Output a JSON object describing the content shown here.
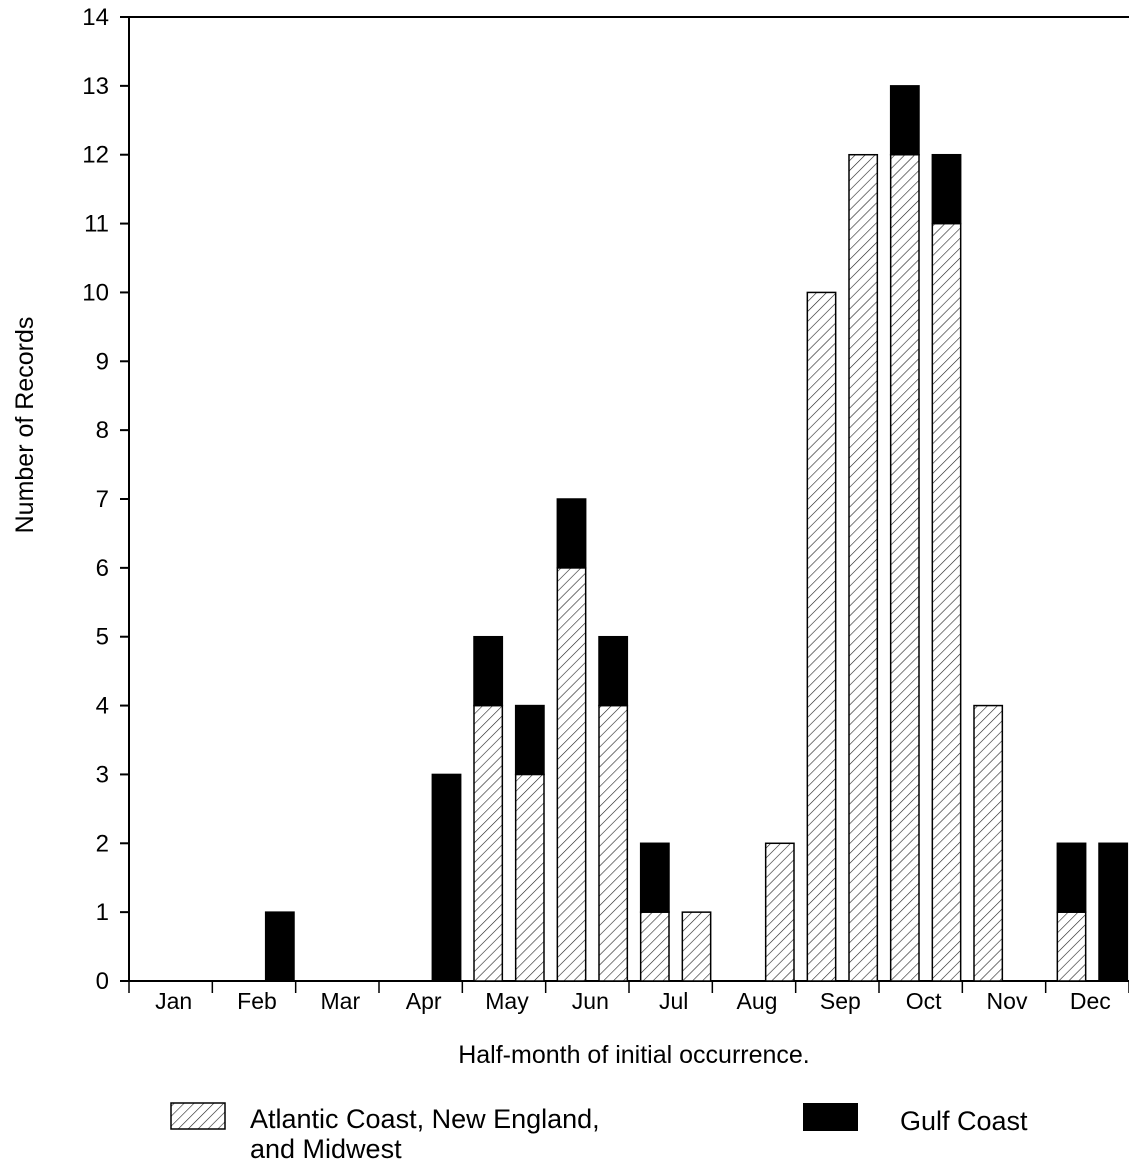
{
  "chart_data": {
    "type": "bar",
    "stacked": true,
    "title": "",
    "xlabel": "Half-month of initial occurrence.",
    "ylabel": "Number of Records",
    "ylim": [
      0,
      14
    ],
    "yticks": [
      0,
      1,
      2,
      3,
      4,
      5,
      6,
      7,
      8,
      9,
      10,
      11,
      12,
      13,
      14
    ],
    "months": [
      "Jan",
      "Feb",
      "Mar",
      "Apr",
      "May",
      "Jun",
      "Jul",
      "Aug",
      "Sep",
      "Oct",
      "Nov",
      "Dec"
    ],
    "half_months_per_month": 2,
    "series": [
      {
        "name": "Atlantic Coast, New England, and Midwest",
        "pattern": "hatched",
        "values": [
          0,
          0,
          0,
          0,
          0,
          0,
          0,
          0,
          4,
          3,
          6,
          4,
          1,
          1,
          0,
          2,
          10,
          12,
          12,
          11,
          4,
          0,
          1,
          0
        ]
      },
      {
        "name": "Gulf Coast",
        "color": "#000000",
        "values": [
          0,
          0,
          0,
          1,
          0,
          0,
          0,
          3,
          1,
          1,
          1,
          1,
          1,
          0,
          0,
          0,
          0,
          0,
          1,
          1,
          0,
          0,
          1,
          2
        ]
      }
    ],
    "legend": {
      "placement": "bottom",
      "items": [
        {
          "label_line1": "Atlantic Coast, New England,",
          "label_line2": "and Midwest"
        },
        {
          "label_line1": "Gulf Coast",
          "label_line2": ""
        }
      ]
    },
    "grid": false
  }
}
